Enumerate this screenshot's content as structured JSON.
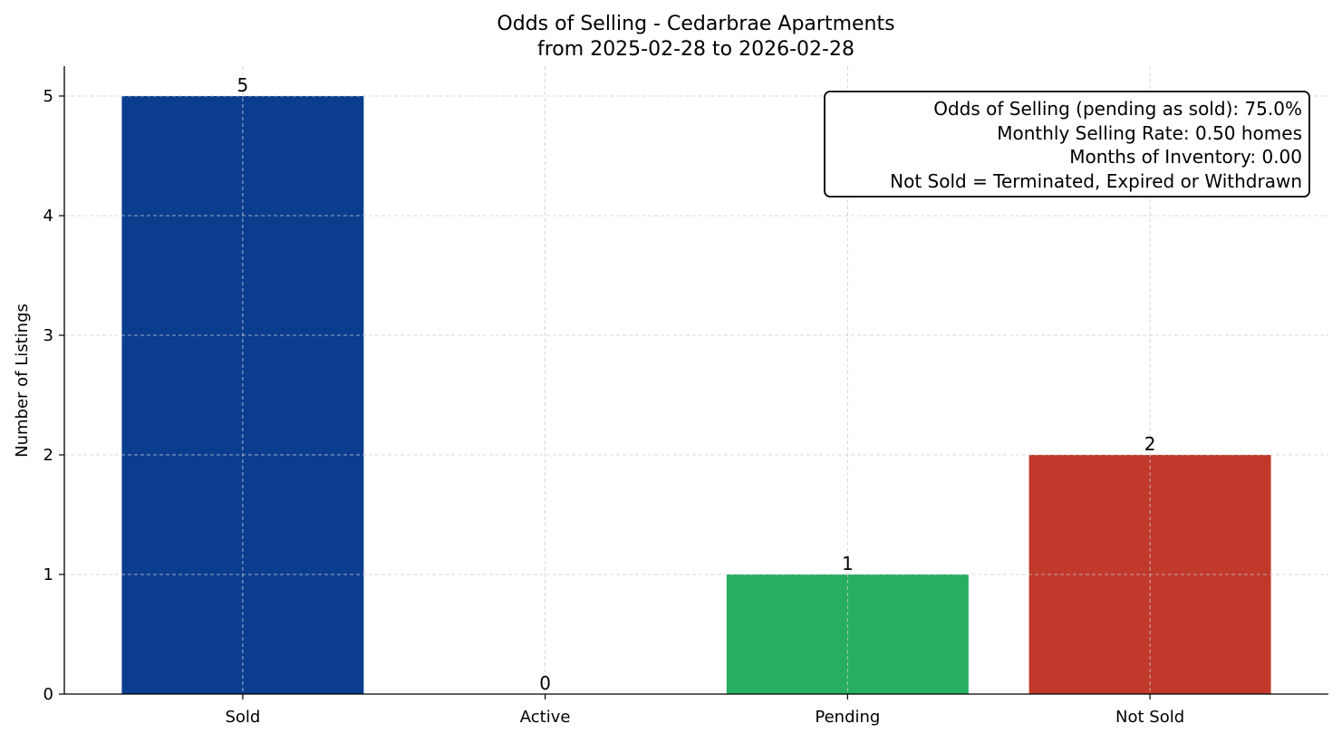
{
  "chart_data": {
    "type": "bar",
    "title": "Odds of Selling - Cedarbrae Apartments",
    "subtitle": "from 2025-02-28 to 2026-02-28",
    "xlabel": "",
    "ylabel": "Number of Listings",
    "categories": [
      "Sold",
      "Active",
      "Pending",
      "Not Sold"
    ],
    "values": [
      5,
      0,
      1,
      2
    ],
    "data_labels": [
      "5",
      "0",
      "1",
      "2"
    ],
    "colors": [
      "#0b3d8f",
      "#2ecc71",
      "#27ae60",
      "#c0392b"
    ],
    "ylim": [
      0,
      5.25
    ],
    "yticks": [
      0,
      1,
      2,
      3,
      4,
      5
    ],
    "grid": true,
    "annotation": [
      "Odds of Selling (pending as sold): 75.0%",
      "Monthly Selling Rate: 0.50 homes",
      "Months of Inventory: 0.00",
      "Not Sold = Terminated, Expired or Withdrawn"
    ],
    "annotation_placement": "top-right"
  }
}
